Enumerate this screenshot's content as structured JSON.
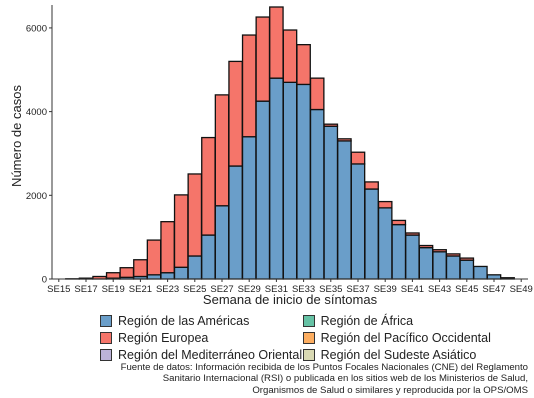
{
  "chart_data": {
    "type": "bar",
    "stacked": true,
    "ylabel": "Número de casos",
    "xlabel": "Semana de inicio de síntomas",
    "ylim": [
      0,
      6500
    ],
    "yticks": [
      0,
      2000,
      4000,
      6000
    ],
    "grid": false,
    "legend_position": "bottom",
    "categories": [
      "SE15",
      "SE16",
      "SE17",
      "SE18",
      "SE19",
      "SE20",
      "SE21",
      "SE22",
      "SE23",
      "SE24",
      "SE25",
      "SE26",
      "SE27",
      "SE28",
      "SE29",
      "SE30",
      "SE31",
      "SE32",
      "SE33",
      "SE34",
      "SE35",
      "SE36",
      "SE37",
      "SE38",
      "SE39",
      "SE40",
      "SE41",
      "SE42",
      "SE43",
      "SE44",
      "SE45",
      "SE46",
      "SE47",
      "SE48",
      "SE49"
    ],
    "xtick_labels": [
      "SE15",
      "SE17",
      "SE19",
      "SE21",
      "SE23",
      "SE25",
      "SE27",
      "SE29",
      "SE31",
      "SE33",
      "SE35",
      "SE37",
      "SE39",
      "SE41",
      "SE43",
      "SE45",
      "SE47",
      "SE49"
    ],
    "series": [
      {
        "name": "Región de las Américas",
        "color": "#6a9ec9",
        "values": [
          0,
          0,
          0,
          0,
          20,
          40,
          60,
          100,
          150,
          280,
          550,
          1050,
          1750,
          2700,
          3400,
          4250,
          4800,
          4700,
          4650,
          4050,
          3650,
          3300,
          2750,
          2150,
          1700,
          1300,
          1050,
          750,
          650,
          550,
          450,
          300,
          100,
          30,
          0
        ]
      },
      {
        "name": "Región Europea",
        "color": "#f5756a",
        "values": [
          0,
          5,
          20,
          60,
          130,
          230,
          400,
          830,
          1220,
          1730,
          1960,
          2330,
          2650,
          2500,
          2430,
          2010,
          1700,
          1250,
          950,
          750,
          50,
          50,
          280,
          170,
          150,
          100,
          50,
          50,
          50,
          50,
          50,
          0,
          0,
          0,
          0
        ]
      }
    ]
  },
  "legend": [
    [
      {
        "label": "Región de las Américas",
        "color": "#6a9ec9"
      },
      {
        "label": "Región de África",
        "color": "#66c2a5"
      }
    ],
    [
      {
        "label": "Región Europea",
        "color": "#f5756a"
      },
      {
        "label": "Región del Pacífico Occidental",
        "color": "#fdae61"
      }
    ],
    [
      {
        "label": "Región del Mediterráneo Oriental",
        "color": "#bcb3d9"
      },
      {
        "label": "Región del Sudeste Asiático",
        "color": "#d9d9b3"
      }
    ]
  ],
  "source": [
    "Fuente de datos: Información recibida de los Puntos Focales Nacionales (CNE) del Reglamento",
    "Sanitario Internacional (RSI) o publicada en los sitios web de los Ministerios de Salud,",
    "Organismos de Salud o similares y reproducida por la OPS/OMS"
  ]
}
